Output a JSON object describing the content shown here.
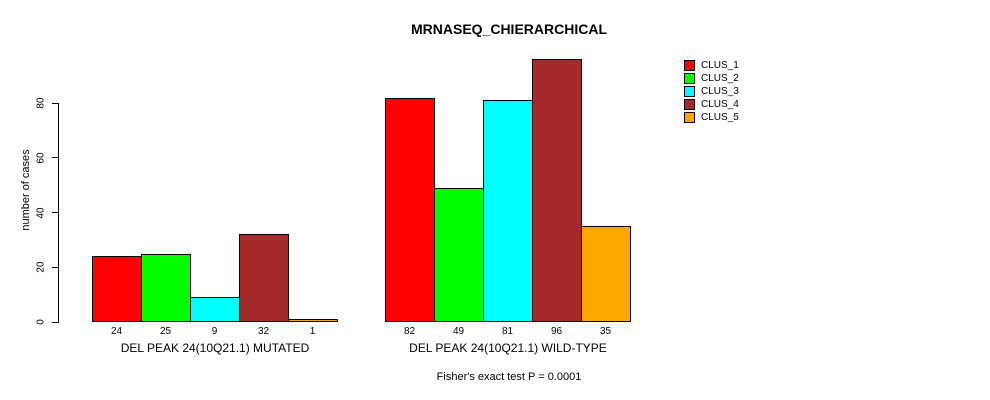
{
  "chart_data": {
    "type": "bar",
    "title": "MRNASEQ_CHIERARCHICAL",
    "ylabel": "number of cases",
    "xlabel": "",
    "yticks": [
      0,
      20,
      40,
      60,
      80
    ],
    "ylim": [
      0,
      96
    ],
    "grid": false,
    "legend_position": "right",
    "bar_value_labels_shown": true,
    "series": [
      {
        "name": "CLUS_1",
        "color": "#FF0000"
      },
      {
        "name": "CLUS_2",
        "color": "#00FF00"
      },
      {
        "name": "CLUS_3",
        "color": "#00FFFF"
      },
      {
        "name": "CLUS_4",
        "color": "#A52A2A"
      },
      {
        "name": "CLUS_5",
        "color": "#FFA500"
      }
    ],
    "groups": [
      {
        "label": "DEL PEAK 24(10Q21.1) MUTATED",
        "values": [
          24,
          25,
          9,
          32,
          1
        ]
      },
      {
        "label": "DEL PEAK 24(10Q21.1) WILD-TYPE",
        "values": [
          82,
          49,
          81,
          96,
          35
        ]
      }
    ],
    "footnote": "Fisher's exact test P = 0.0001"
  }
}
